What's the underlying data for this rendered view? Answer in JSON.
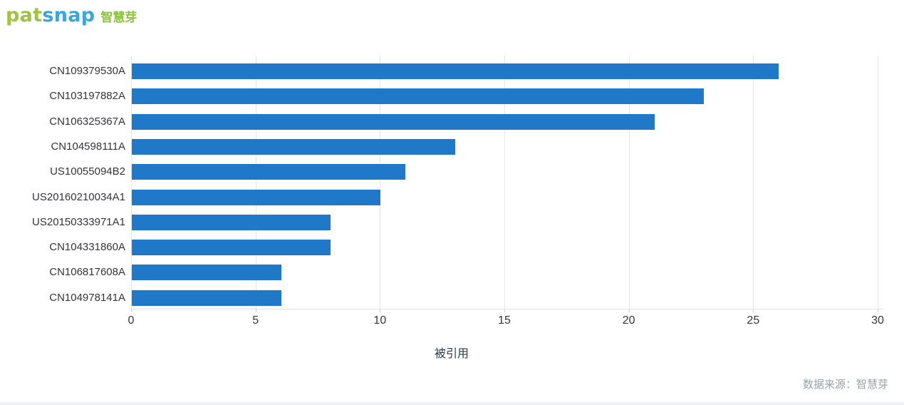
{
  "logo": {
    "part1": "pat",
    "part2": "snap",
    "suffix": "智慧芽",
    "part1_color": "#9fc43e",
    "part2_color": "#38a7da",
    "suffix_color": "#8bc540"
  },
  "chart_data": {
    "type": "bar",
    "orientation": "horizontal",
    "title": "",
    "categories": [
      "CN109379530A",
      "CN103197882A",
      "CN106325367A",
      "CN104598111A",
      "US10055094B2",
      "US20160210034A1",
      "US20150333971A1",
      "CN104331860A",
      "CN106817608A",
      "CN104978141A"
    ],
    "values": [
      26,
      23,
      21,
      13,
      11,
      10,
      8,
      8,
      6,
      6
    ],
    "xlabel": "被引用",
    "ylabel": "",
    "xlim": [
      0,
      30
    ],
    "xticks": [
      0,
      5,
      10,
      15,
      20,
      25,
      30
    ],
    "bar_color": "#1f78c8",
    "grid": true,
    "legend": "none"
  },
  "footer": {
    "source_label": "数据来源：智慧芽"
  }
}
